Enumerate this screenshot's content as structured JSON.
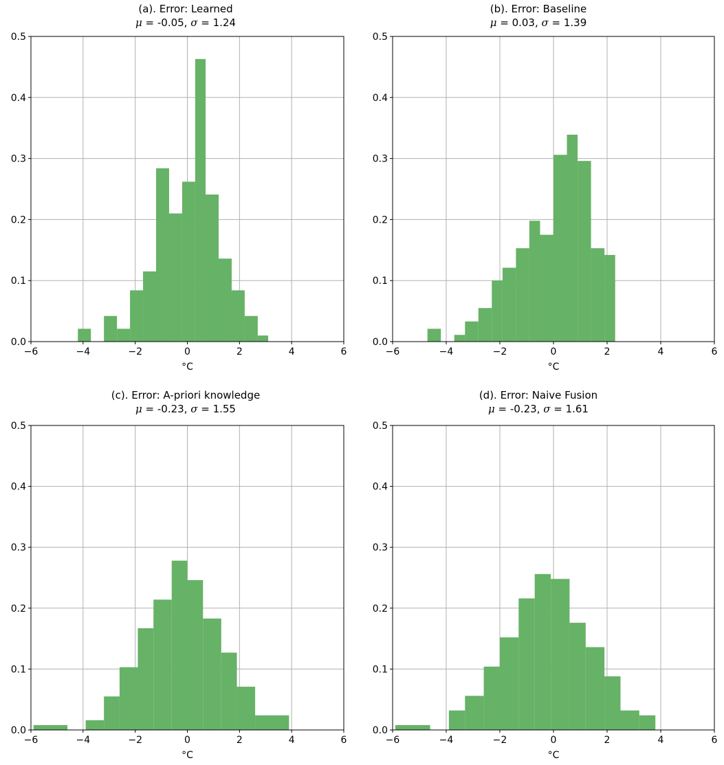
{
  "figure": {
    "x_ticks": [
      "−6",
      "−4",
      "−2",
      "0",
      "2",
      "4",
      "6"
    ],
    "y_ticks": [
      "0.0",
      "0.1",
      "0.2",
      "0.3",
      "0.4",
      "0.5"
    ]
  },
  "panels": [
    {
      "title": "(a). Error: Learned",
      "mu_label": "μ",
      "mu_text": " = -0.05,  ",
      "sigma_label": "σ",
      "sigma_text": " = 1.24"
    },
    {
      "title": "(b). Error: Baseline",
      "mu_label": "μ",
      "mu_text": " = 0.03,  ",
      "sigma_label": "σ",
      "sigma_text": " = 1.39"
    },
    {
      "title": "(c). Error: A-priori knowledge",
      "mu_label": "μ",
      "mu_text": " = -0.23,  ",
      "sigma_label": "σ",
      "sigma_text": " = 1.55"
    },
    {
      "title": "(d). Error: Naive Fusion",
      "mu_label": "μ",
      "mu_text": " = -0.23,  ",
      "sigma_label": "σ",
      "sigma_text": " = 1.61"
    }
  ],
  "colors": {
    "bar": "#66b266",
    "grid": "#b0b0b0",
    "axis": "#000000"
  },
  "chart_data": [
    {
      "type": "bar",
      "title": "(a). Error: Learned  μ = -0.05,  σ = 1.24",
      "xlabel": "°C",
      "ylabel": "",
      "xlim": [
        -6,
        6
      ],
      "ylim": [
        0,
        0.5
      ],
      "grid": true,
      "bins": [
        {
          "x0": -4.2,
          "x1": -3.7,
          "value": 0.021
        },
        {
          "x0": -3.2,
          "x1": -2.7,
          "value": 0.042
        },
        {
          "x0": -2.7,
          "x1": -2.2,
          "value": 0.021
        },
        {
          "x0": -2.2,
          "x1": -1.7,
          "value": 0.084
        },
        {
          "x0": -1.7,
          "x1": -1.2,
          "value": 0.115
        },
        {
          "x0": -1.2,
          "x1": -0.7,
          "value": 0.284
        },
        {
          "x0": -0.7,
          "x1": -0.2,
          "value": 0.21
        },
        {
          "x0": -0.2,
          "x1": 0.3,
          "value": 0.262
        },
        {
          "x0": 0.3,
          "x1": 0.7,
          "value": 0.463
        },
        {
          "x0": 0.7,
          "x1": 1.2,
          "value": 0.241
        },
        {
          "x0": 1.2,
          "x1": 1.7,
          "value": 0.136
        },
        {
          "x0": 1.7,
          "x1": 2.2,
          "value": 0.084
        },
        {
          "x0": 2.2,
          "x1": 2.7,
          "value": 0.042
        },
        {
          "x0": 2.7,
          "x1": 3.1,
          "value": 0.01
        }
      ]
    },
    {
      "type": "bar",
      "title": "(b). Error: Baseline  μ = 0.03,  σ = 1.39",
      "xlabel": "°C",
      "ylabel": "",
      "xlim": [
        -6,
        6
      ],
      "ylim": [
        0,
        0.5
      ],
      "grid": true,
      "bins": [
        {
          "x0": -4.7,
          "x1": -4.2,
          "value": 0.021
        },
        {
          "x0": -3.7,
          "x1": -3.3,
          "value": 0.011
        },
        {
          "x0": -3.3,
          "x1": -2.8,
          "value": 0.033
        },
        {
          "x0": -2.8,
          "x1": -2.3,
          "value": 0.055
        },
        {
          "x0": -2.3,
          "x1": -1.9,
          "value": 0.1
        },
        {
          "x0": -1.9,
          "x1": -1.4,
          "value": 0.121
        },
        {
          "x0": -1.4,
          "x1": -0.9,
          "value": 0.153
        },
        {
          "x0": -0.9,
          "x1": -0.5,
          "value": 0.198
        },
        {
          "x0": -0.5,
          "x1": 0.0,
          "value": 0.175
        },
        {
          "x0": 0.0,
          "x1": 0.5,
          "value": 0.306
        },
        {
          "x0": 0.5,
          "x1": 0.9,
          "value": 0.339
        },
        {
          "x0": 0.9,
          "x1": 1.4,
          "value": 0.296
        },
        {
          "x0": 1.4,
          "x1": 1.9,
          "value": 0.153
        },
        {
          "x0": 1.9,
          "x1": 2.3,
          "value": 0.142
        }
      ]
    },
    {
      "type": "bar",
      "title": "(c). Error: A-priori knowledge  μ = -0.23,  σ = 1.55",
      "xlabel": "°C",
      "ylabel": "",
      "xlim": [
        -6,
        6
      ],
      "ylim": [
        0,
        0.5
      ],
      "grid": true,
      "bins": [
        {
          "x0": -5.9,
          "x1": -4.6,
          "value": 0.008
        },
        {
          "x0": -3.9,
          "x1": -3.2,
          "value": 0.016
        },
        {
          "x0": -3.2,
          "x1": -2.6,
          "value": 0.055
        },
        {
          "x0": -2.6,
          "x1": -1.9,
          "value": 0.103
        },
        {
          "x0": -1.9,
          "x1": -1.3,
          "value": 0.167
        },
        {
          "x0": -1.3,
          "x1": -0.6,
          "value": 0.214
        },
        {
          "x0": -0.6,
          "x1": 0.0,
          "value": 0.278
        },
        {
          "x0": 0.0,
          "x1": 0.6,
          "value": 0.246
        },
        {
          "x0": 0.6,
          "x1": 1.3,
          "value": 0.183
        },
        {
          "x0": 1.3,
          "x1": 1.9,
          "value": 0.127
        },
        {
          "x0": 1.9,
          "x1": 2.6,
          "value": 0.071
        },
        {
          "x0": 2.6,
          "x1": 3.9,
          "value": 0.024
        }
      ]
    },
    {
      "type": "bar",
      "title": "(d). Error: Naive Fusion  μ = -0.23,  σ = 1.61",
      "xlabel": "°C",
      "ylabel": "",
      "xlim": [
        -6,
        6
      ],
      "ylim": [
        0,
        0.5
      ],
      "grid": true,
      "bins": [
        {
          "x0": -5.9,
          "x1": -4.6,
          "value": 0.008
        },
        {
          "x0": -3.9,
          "x1": -3.3,
          "value": 0.032
        },
        {
          "x0": -3.3,
          "x1": -2.6,
          "value": 0.056
        },
        {
          "x0": -2.6,
          "x1": -2.0,
          "value": 0.104
        },
        {
          "x0": -2.0,
          "x1": -1.3,
          "value": 0.152
        },
        {
          "x0": -1.3,
          "x1": -0.7,
          "value": 0.216
        },
        {
          "x0": -0.7,
          "x1": -0.1,
          "value": 0.256
        },
        {
          "x0": -0.1,
          "x1": 0.6,
          "value": 0.248
        },
        {
          "x0": 0.6,
          "x1": 1.2,
          "value": 0.176
        },
        {
          "x0": 1.2,
          "x1": 1.9,
          "value": 0.136
        },
        {
          "x0": 1.9,
          "x1": 2.5,
          "value": 0.088
        },
        {
          "x0": 2.5,
          "x1": 3.2,
          "value": 0.032
        },
        {
          "x0": 3.2,
          "x1": 3.8,
          "value": 0.024
        }
      ]
    }
  ]
}
